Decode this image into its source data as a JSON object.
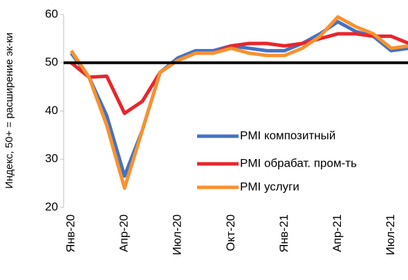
{
  "chart_data": {
    "type": "line",
    "y_label": "Индекс, 50+ = расширение эк-ки",
    "categories": [
      "Янв-20",
      null,
      null,
      "Апр-20",
      null,
      null,
      "Июл-20",
      null,
      null,
      "Окт-20",
      null,
      null,
      "Янв-21",
      null,
      null,
      "Апр-21",
      null,
      null,
      "Июл-21",
      null
    ],
    "series": [
      {
        "name": "PMI композитный",
        "color": "#4472c4",
        "values": [
          52,
          47,
          39,
          26.5,
          36,
          48,
          51,
          52.5,
          52.5,
          53.5,
          53,
          52.5,
          52.5,
          54,
          56,
          58.5,
          56.5,
          55.5,
          52.5,
          53
        ]
      },
      {
        "name": "PMI обрабат. пром-ть",
        "color": "#e8262c",
        "values": [
          50,
          47,
          47.2,
          39.5,
          42,
          48,
          50.5,
          52,
          52,
          53.5,
          54,
          54,
          53.5,
          54,
          55,
          56,
          56,
          55.5,
          55.5,
          54
        ]
      },
      {
        "name": "PMI услуги",
        "color": "#f7922f",
        "values": [
          52.5,
          47,
          37,
          24,
          36,
          48,
          50.5,
          52,
          52,
          53,
          52,
          51.5,
          51.5,
          53,
          55.5,
          59.5,
          57.5,
          56,
          53,
          53.5
        ]
      }
    ],
    "reference_line": 50,
    "ylim": [
      20,
      60
    ],
    "yticks": [
      20,
      30,
      40,
      50,
      60
    ]
  }
}
